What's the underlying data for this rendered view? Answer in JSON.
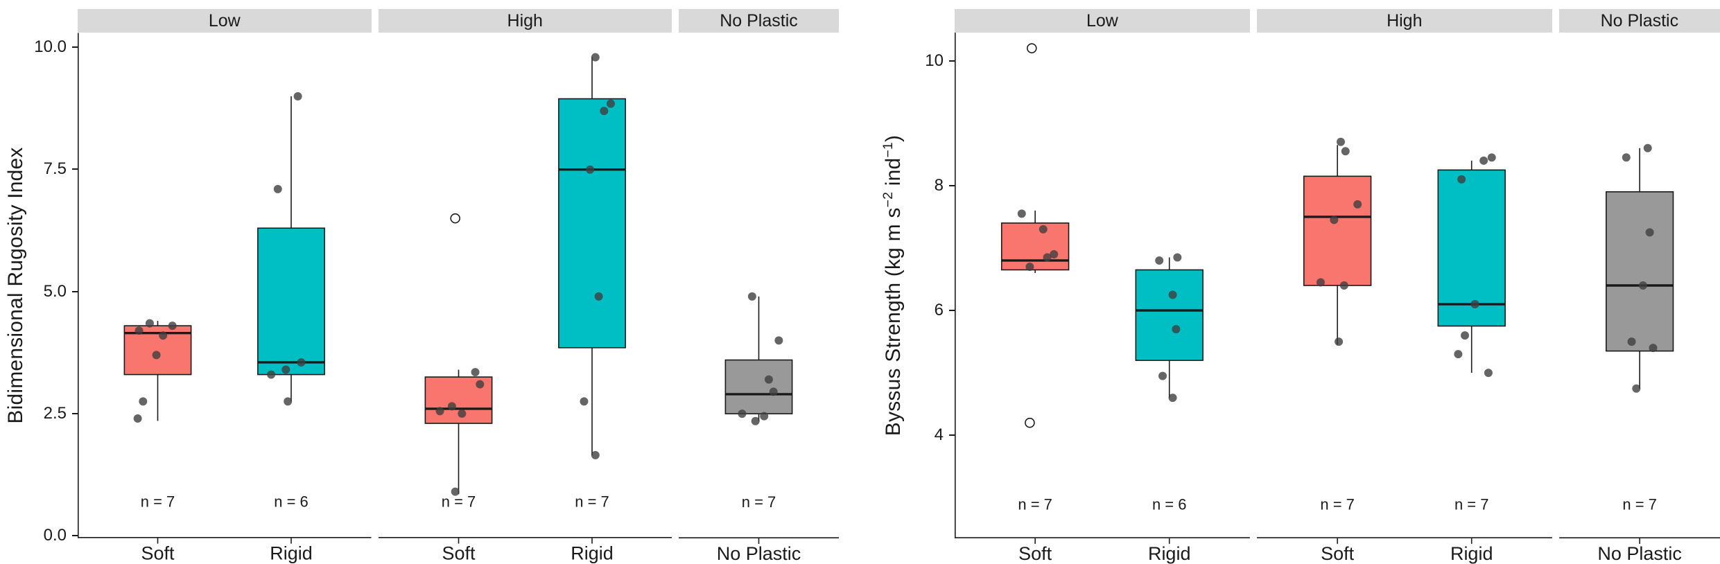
{
  "figure": {
    "background": "#FFFFFF",
    "colors": {
      "soft": "#F8766D",
      "rigid": "#00BFC4",
      "no_plastic": "#999999",
      "strip_bg": "#D9D9D9",
      "point": "#3F3F3F",
      "axis": "#1A1A1A"
    }
  },
  "chart_data": [
    {
      "type": "boxplot",
      "title": "",
      "ylabel": [
        {
          "t": "Bidimensional Rugosity Index"
        }
      ],
      "ylim": [
        -0.05,
        10.3
      ],
      "grid": false,
      "n_label_y": 0.7,
      "yticks": [
        {
          "v": 0,
          "label": "0.0"
        },
        {
          "v": 2.5,
          "label": "2.5"
        },
        {
          "v": 5,
          "label": "5.0"
        },
        {
          "v": 7.5,
          "label": "7.5"
        },
        {
          "v": 10,
          "label": "10.0"
        }
      ],
      "facets": [
        {
          "label": "Low",
          "units": 2.2,
          "groups": [
            {
              "x_label": "Soft",
              "color_key": "soft",
              "n": "n = 7",
              "box": {
                "w_low": 2.35,
                "q1": 3.3,
                "median": 4.15,
                "q3": 4.3,
                "w_high": 4.4
              },
              "points": [
                [
                  4.35,
                  -0.12
                ],
                [
                  4.3,
                  0.22
                ],
                [
                  4.2,
                  -0.28
                ],
                [
                  4.1,
                  0.08
                ],
                [
                  3.7,
                  -0.02
                ],
                [
                  2.75,
                  -0.22
                ],
                [
                  2.4,
                  -0.3
                ]
              ],
              "outliers": []
            },
            {
              "x_label": "Rigid",
              "color_key": "rigid",
              "n": "n = 6",
              "box": {
                "w_low": 2.75,
                "q1": 3.3,
                "median": 3.55,
                "q3": 6.3,
                "w_high": 9.0
              },
              "points": [
                [
                  9.0,
                  0.1
                ],
                [
                  7.1,
                  -0.2
                ],
                [
                  3.55,
                  0.15
                ],
                [
                  3.4,
                  -0.08
                ],
                [
                  3.3,
                  -0.3
                ],
                [
                  2.75,
                  -0.05
                ]
              ],
              "outliers": []
            }
          ]
        },
        {
          "label": "High",
          "units": 2.2,
          "groups": [
            {
              "x_label": "Soft",
              "color_key": "soft",
              "n": "n = 7",
              "box": {
                "w_low": 0.85,
                "q1": 2.3,
                "median": 2.6,
                "q3": 3.25,
                "w_high": 3.4
              },
              "points": [
                [
                  3.35,
                  0.25
                ],
                [
                  3.1,
                  0.32
                ],
                [
                  2.65,
                  -0.1
                ],
                [
                  2.55,
                  -0.28
                ],
                [
                  2.5,
                  0.05
                ],
                [
                  0.9,
                  -0.05
                ]
              ],
              "outliers": [
                [
                  6.5,
                  -0.05
                ]
              ]
            },
            {
              "x_label": "Rigid",
              "color_key": "rigid",
              "n": "n = 7",
              "box": {
                "w_low": 1.65,
                "q1": 3.85,
                "median": 7.5,
                "q3": 8.95,
                "w_high": 9.8
              },
              "points": [
                [
                  9.8,
                  0.05
                ],
                [
                  8.85,
                  0.28
                ],
                [
                  8.7,
                  0.18
                ],
                [
                  7.5,
                  -0.03
                ],
                [
                  4.9,
                  0.1
                ],
                [
                  2.75,
                  -0.12
                ],
                [
                  1.65,
                  0.05
                ]
              ],
              "outliers": []
            }
          ]
        },
        {
          "label": "No Plastic",
          "units": 1.2,
          "groups": [
            {
              "x_label": "No Plastic",
              "color_key": "no_plastic",
              "n": "n = 7",
              "box": {
                "w_low": 2.35,
                "q1": 2.5,
                "median": 2.9,
                "q3": 3.6,
                "w_high": 4.9
              },
              "points": [
                [
                  4.9,
                  -0.1
                ],
                [
                  4.0,
                  0.3
                ],
                [
                  3.2,
                  0.15
                ],
                [
                  2.95,
                  0.22
                ],
                [
                  2.5,
                  -0.25
                ],
                [
                  2.45,
                  0.08
                ],
                [
                  2.35,
                  -0.05
                ]
              ],
              "outliers": []
            }
          ]
        }
      ]
    },
    {
      "type": "boxplot",
      "title": "",
      "ylabel": [
        {
          "t": "Byssus Strength (kg m s"
        },
        {
          "t": "−2",
          "sup": true
        },
        {
          "t": " ind"
        },
        {
          "t": "−1",
          "sup": true
        },
        {
          "t": ")"
        }
      ],
      "ylim": [
        2.35,
        10.45
      ],
      "grid": false,
      "n_label_y": 2.9,
      "yticks": [
        {
          "v": 4,
          "label": "4"
        },
        {
          "v": 6,
          "label": "6"
        },
        {
          "v": 8,
          "label": "8"
        },
        {
          "v": 10,
          "label": "10"
        }
      ],
      "facets": [
        {
          "label": "Low",
          "units": 2.2,
          "groups": [
            {
              "x_label": "Soft",
              "color_key": "soft",
              "n": "n = 7",
              "box": {
                "w_low": 6.6,
                "q1": 6.65,
                "median": 6.8,
                "q3": 7.4,
                "w_high": 7.6
              },
              "points": [
                [
                  7.55,
                  -0.2
                ],
                [
                  7.3,
                  0.12
                ],
                [
                  6.9,
                  0.28
                ],
                [
                  6.85,
                  0.18
                ],
                [
                  6.7,
                  -0.08
                ]
              ],
              "outliers": [
                [
                  10.2,
                  -0.05
                ],
                [
                  4.2,
                  -0.08
                ]
              ]
            },
            {
              "x_label": "Rigid",
              "color_key": "rigid",
              "n": "n = 6",
              "box": {
                "w_low": 4.6,
                "q1": 5.2,
                "median": 6.0,
                "q3": 6.65,
                "w_high": 6.85
              },
              "points": [
                [
                  6.85,
                  0.12
                ],
                [
                  6.8,
                  -0.15
                ],
                [
                  6.25,
                  0.05
                ],
                [
                  5.7,
                  0.1
                ],
                [
                  4.95,
                  -0.1
                ],
                [
                  4.6,
                  0.05
                ]
              ],
              "outliers": []
            }
          ]
        },
        {
          "label": "High",
          "units": 2.2,
          "groups": [
            {
              "x_label": "Soft",
              "color_key": "soft",
              "n": "n = 7",
              "box": {
                "w_low": 5.45,
                "q1": 6.4,
                "median": 7.5,
                "q3": 8.15,
                "w_high": 8.65
              },
              "points": [
                [
                  8.7,
                  0.05
                ],
                [
                  8.55,
                  0.12
                ],
                [
                  7.7,
                  0.3
                ],
                [
                  7.45,
                  -0.05
                ],
                [
                  6.45,
                  -0.25
                ],
                [
                  6.4,
                  0.1
                ],
                [
                  5.5,
                  0.02
                ]
              ],
              "outliers": []
            },
            {
              "x_label": "Rigid",
              "color_key": "rigid",
              "n": "n = 7",
              "box": {
                "w_low": 5.0,
                "q1": 5.75,
                "median": 6.1,
                "q3": 8.25,
                "w_high": 8.4
              },
              "points": [
                [
                  8.45,
                  0.3
                ],
                [
                  8.4,
                  0.18
                ],
                [
                  8.1,
                  -0.15
                ],
                [
                  6.1,
                  0.05
                ],
                [
                  5.6,
                  -0.1
                ],
                [
                  5.3,
                  -0.2
                ],
                [
                  5.0,
                  0.25
                ]
              ],
              "outliers": []
            }
          ]
        },
        {
          "label": "No Plastic",
          "units": 1.2,
          "groups": [
            {
              "x_label": "No Plastic",
              "color_key": "no_plastic",
              "n": "n = 7",
              "box": {
                "w_low": 4.75,
                "q1": 5.35,
                "median": 6.4,
                "q3": 7.9,
                "w_high": 8.6
              },
              "points": [
                [
                  8.6,
                  0.12
                ],
                [
                  8.45,
                  -0.2
                ],
                [
                  7.25,
                  0.15
                ],
                [
                  6.4,
                  0.05
                ],
                [
                  5.5,
                  -0.12
                ],
                [
                  5.4,
                  0.2
                ],
                [
                  4.75,
                  -0.05
                ]
              ],
              "outliers": []
            }
          ]
        }
      ]
    }
  ]
}
